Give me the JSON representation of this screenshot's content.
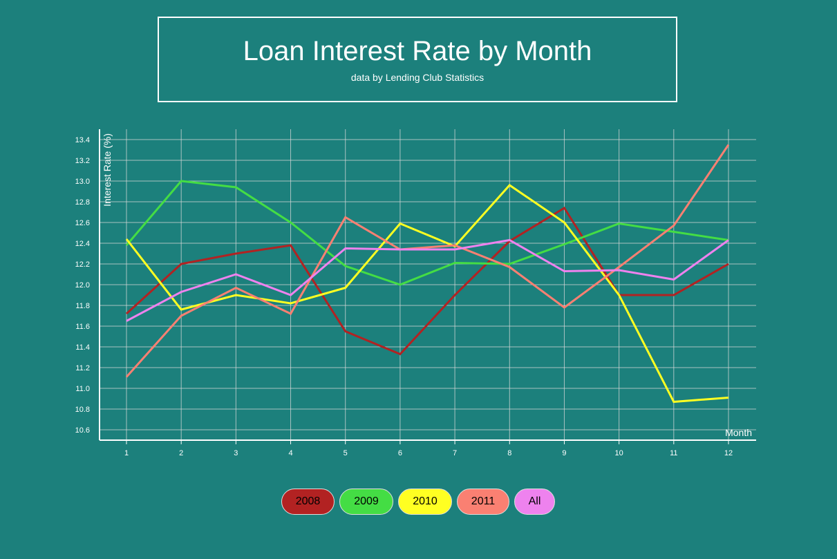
{
  "header": {
    "title": "Loan Interest Rate by Month",
    "subtitle": "data by Lending Club Statistics"
  },
  "legend": [
    {
      "label": "2008",
      "color": "#b22222"
    },
    {
      "label": "2009",
      "color": "#44dd44"
    },
    {
      "label": "2010",
      "color": "#ffff22"
    },
    {
      "label": "2011",
      "color": "#fa8072"
    },
    {
      "label": "All",
      "color": "#ee82ee"
    }
  ],
  "chart_data": {
    "type": "line",
    "title": "Loan Interest Rate by Month",
    "subtitle": "data by Lending Club Statistics",
    "xlabel": "Month",
    "ylabel": "Interest Rate (%)",
    "x": [
      1,
      2,
      3,
      4,
      5,
      6,
      7,
      8,
      9,
      10,
      11,
      12
    ],
    "ylim": [
      10.5,
      13.5
    ],
    "yticks": [
      "10.6",
      "10.8",
      "11.0",
      "11.2",
      "11.4",
      "11.6",
      "11.8",
      "12.0",
      "12.2",
      "12.4",
      "12.6",
      "12.8",
      "13.0",
      "13.2",
      "13.4"
    ],
    "grid": true,
    "series": [
      {
        "name": "2008",
        "color": "#b22222",
        "values": [
          11.72,
          12.2,
          12.3,
          12.38,
          11.55,
          11.33,
          11.9,
          12.42,
          12.74,
          11.9,
          11.9,
          12.2
        ]
      },
      {
        "name": "2009",
        "color": "#44dd44",
        "values": [
          12.38,
          13.0,
          12.94,
          12.6,
          12.18,
          12.0,
          12.21,
          12.2,
          12.39,
          12.59,
          12.51,
          12.43
        ]
      },
      {
        "name": "2010",
        "color": "#ffff22",
        "values": [
          12.44,
          11.76,
          11.9,
          11.82,
          11.97,
          12.59,
          12.37,
          12.96,
          12.6,
          11.9,
          10.87,
          10.91
        ]
      },
      {
        "name": "2011",
        "color": "#fa8072",
        "values": [
          11.11,
          11.7,
          11.97,
          11.72,
          12.65,
          12.34,
          12.38,
          12.17,
          11.78,
          12.17,
          12.57,
          13.35
        ]
      },
      {
        "name": "All",
        "color": "#ee82ee",
        "values": [
          11.65,
          11.93,
          12.1,
          11.9,
          12.35,
          12.34,
          12.34,
          12.43,
          12.13,
          12.14,
          12.05,
          12.43
        ]
      }
    ]
  }
}
